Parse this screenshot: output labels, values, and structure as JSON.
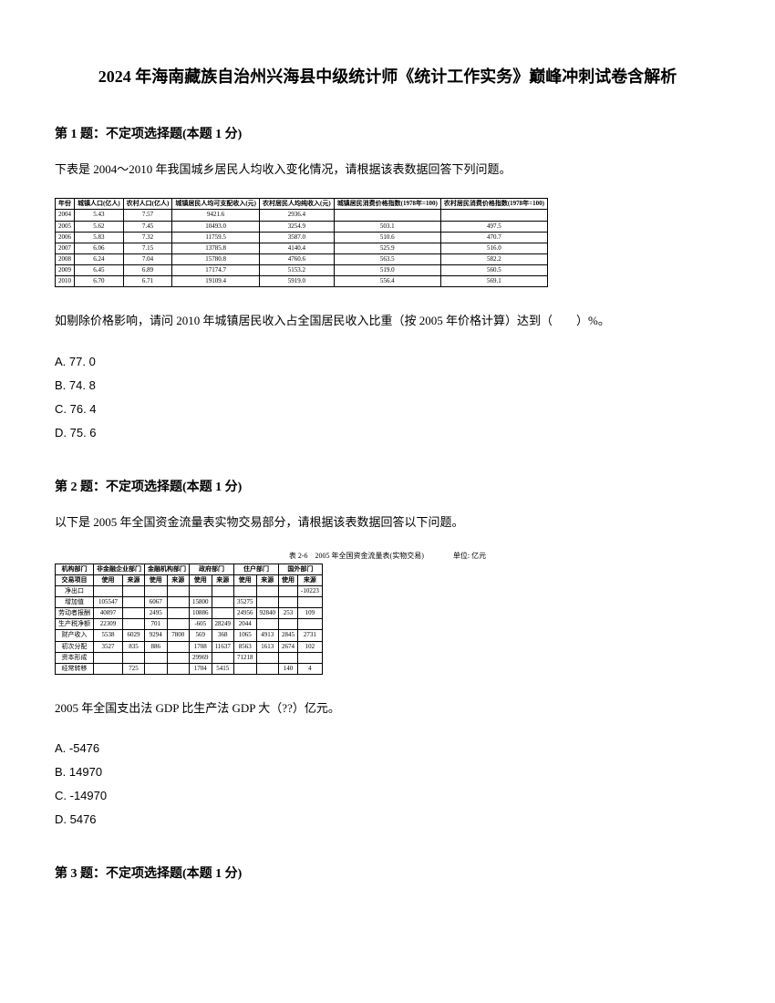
{
  "title": "2024 年海南藏族自治州兴海县中级统计师《统计工作实务》巅峰冲刺试卷含解析",
  "q1": {
    "header": "第 1 题：不定项选择题(本题 1 分)",
    "text": "下表是 2004～2010 年我国城乡居民人均收入变化情况，请根据该表数据回答下列问题。",
    "table": {
      "headers": [
        "年份",
        "城镇人口(亿人)",
        "农村人口(亿人)",
        "城镇居民人均可支配收入(元)",
        "农村居民人均纯收入(元)",
        "城镇居民消费价格指数(1978年=100)",
        "农村居民消费价格指数(1978年=100)"
      ],
      "rows": [
        [
          "2004",
          "5.43",
          "7.57",
          "9421.6",
          "2936.4",
          "",
          ""
        ],
        [
          "2005",
          "5.62",
          "7.45",
          "10493.0",
          "3254.9",
          "503.1",
          "497.5"
        ],
        [
          "2006",
          "5.83",
          "7.32",
          "11759.5",
          "3587.0",
          "510.6",
          "470.7"
        ],
        [
          "2007",
          "6.06",
          "7.15",
          "13785.8",
          "4140.4",
          "525.9",
          "516.0"
        ],
        [
          "2008",
          "6.24",
          "7.04",
          "15780.8",
          "4760.6",
          "563.5",
          "582.2"
        ],
        [
          "2009",
          "6.45",
          "6.89",
          "17174.7",
          "5153.2",
          "519.0",
          "560.5"
        ],
        [
          "2010",
          "6.70",
          "6.71",
          "19109.4",
          "5919.0",
          "556.4",
          "569.1"
        ]
      ]
    },
    "after_text": "如剔除价格影响，请问 2010 年城镇居民收入占全国居民收入比重（按 2005 年价格计算）达到（　　）%。",
    "options": {
      "a": "A. 77. 0",
      "b": "B. 74. 8",
      "c": "C. 76. 4",
      "d": "D. 75. 6"
    }
  },
  "q2": {
    "header": "第 2 题：不定项选择题(本题 1 分)",
    "text": "以下是 2005 年全国资金流量表实物交易部分，请根据该表数据回答以下问题。",
    "table": {
      "title": "表 2-6　2005 年全国资金流量表(实物交易)　　　　单位: 亿元",
      "headers_top": [
        "机构部门",
        "非金融企业部门",
        "金融机构部门",
        "政府部门",
        "住户部门",
        "国外部门"
      ],
      "headers_sub": [
        "交易项目",
        "使用",
        "来源",
        "使用",
        "来源",
        "使用",
        "来源",
        "使用",
        "来源",
        "使用",
        "来源"
      ],
      "rows": [
        [
          "净出口",
          "",
          "",
          "",
          "",
          "",
          "",
          "",
          "",
          "",
          "-10223"
        ],
        [
          "增加值",
          "105547",
          "",
          "6067",
          "",
          "15800",
          "",
          "35275",
          "",
          "",
          ""
        ],
        [
          "劳动者报酬",
          "40897",
          "",
          "2495",
          "",
          "10886",
          "",
          "24956",
          "92840",
          "253",
          "109"
        ],
        [
          "生产税净额",
          "22309",
          "",
          "701",
          "",
          "-605",
          "28249",
          "2044",
          "",
          "",
          ""
        ],
        [
          "财产收入",
          "5538",
          "6029",
          "9294",
          "7800",
          "569",
          "368",
          "1065",
          "4913",
          "2845",
          "2731"
        ],
        [
          "初次分配",
          "3527",
          "835",
          "886",
          "",
          "1708",
          "11637",
          "8563",
          "1613",
          "2674",
          "102"
        ],
        [
          "资本形成",
          "",
          "",
          "",
          "",
          "29969",
          "",
          "71218",
          "",
          "",
          ""
        ],
        [
          "经常转移",
          "",
          "725",
          "",
          "",
          "1704",
          "5415",
          "",
          "",
          "140",
          "4"
        ]
      ]
    },
    "after_text": "2005 年全国支出法 GDP 比生产法 GDP 大（??）亿元。",
    "options": {
      "a": "A. -5476",
      "b": "B. 14970",
      "c": "C. -14970",
      "d": "D. 5476"
    }
  },
  "q3": {
    "header": "第 3 题：不定项选择题(本题 1 分)"
  }
}
